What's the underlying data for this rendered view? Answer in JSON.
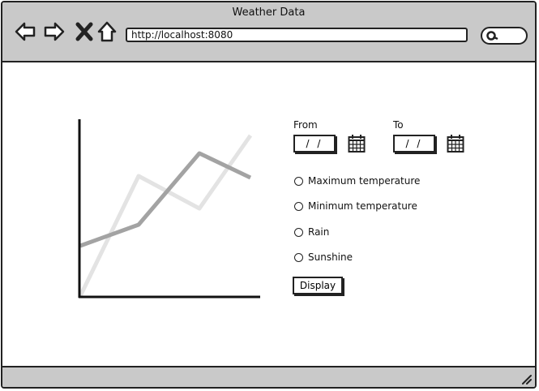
{
  "window": {
    "title": "Weather Data"
  },
  "browser": {
    "url": "http://localhost:8080"
  },
  "icons": [
    "back-arrow-icon",
    "forward-arrow-icon",
    "close-x-icon",
    "home-icon",
    "search-icon",
    "calendar-icon",
    "resize-grip-icon"
  ],
  "form": {
    "from_label": "From",
    "to_label": "To",
    "from_value": "/ /",
    "to_value": "/ /",
    "options": [
      "Maximum temperature",
      "Minimum temperature",
      "Rain",
      "Sunshine"
    ],
    "display_button": "Display"
  },
  "colors": {
    "chrome": "#c9c9c9",
    "stroke": "#222222",
    "series_dark": "#a3a3a3",
    "series_light": "#e3e3e3"
  }
}
